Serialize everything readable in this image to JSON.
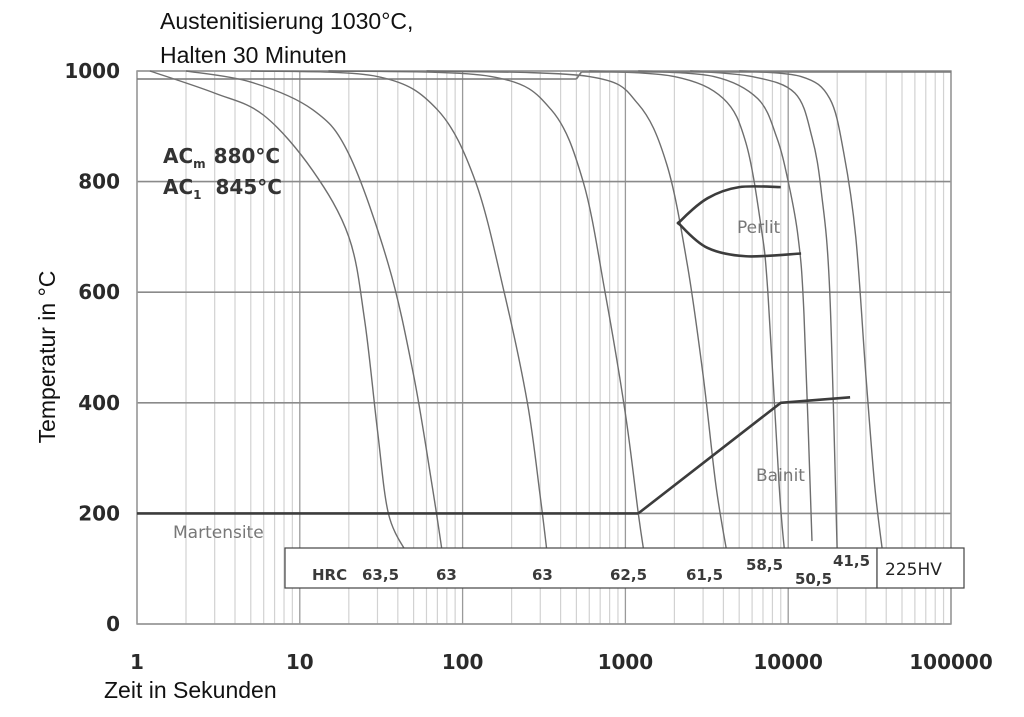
{
  "chart_data": {
    "type": "line",
    "title_lines": [
      "Austenitisierung 1030°C,",
      "Halten 30 Minuten"
    ],
    "xlabel": "Zeit in Sekunden",
    "ylabel": "Temperatur in °C",
    "x_scale": "log",
    "xlim": [
      1,
      100000
    ],
    "ylim": [
      0,
      1000
    ],
    "x_ticks": [
      "1",
      "10",
      "100",
      "1000",
      "10000",
      "100000"
    ],
    "y_ticks": [
      "0",
      "200",
      "400",
      "600",
      "800",
      "1000"
    ],
    "grid": true,
    "annotations": {
      "acm_main": "AC",
      "acm_sub": "m",
      "acm_value": "880°C",
      "ac1_main": "AC",
      "ac1_sub": "1",
      "ac1_value": "845°C"
    },
    "regions": {
      "perlit": "Perlit",
      "bainit": "Bainit",
      "martensite": "Martensite"
    },
    "hardness_prefix": "HRC",
    "hardness_labels": [
      "63,5",
      "63",
      "63",
      "62,5",
      "61,5",
      "58,5",
      "50,5",
      "41,5"
    ],
    "hv_label": "225HV",
    "austenitizing_line": [
      [
        1,
        1000
      ],
      [
        500,
        1000
      ]
    ],
    "cooling_curves": [
      {
        "points": [
          [
            1.2,
            1000
          ],
          [
            3,
            960
          ],
          [
            6,
            920
          ],
          [
            12,
            820
          ],
          [
            20,
            700
          ],
          [
            25,
            550
          ],
          [
            30,
            350
          ],
          [
            35,
            200
          ],
          [
            45,
            130
          ]
        ]
      },
      {
        "points": [
          [
            2,
            1000
          ],
          [
            5,
            980
          ],
          [
            12,
            930
          ],
          [
            20,
            850
          ],
          [
            35,
            650
          ],
          [
            50,
            450
          ],
          [
            65,
            250
          ],
          [
            75,
            130
          ]
        ]
      },
      {
        "points": [
          [
            5,
            1000
          ],
          [
            30,
            990
          ],
          [
            70,
            930
          ],
          [
            120,
            800
          ],
          [
            180,
            600
          ],
          [
            250,
            400
          ],
          [
            300,
            230
          ],
          [
            330,
            130
          ]
        ]
      },
      {
        "points": [
          [
            15,
            1000
          ],
          [
            150,
            990
          ],
          [
            350,
            930
          ],
          [
            550,
            800
          ],
          [
            750,
            600
          ],
          [
            1000,
            380
          ],
          [
            1200,
            200
          ],
          [
            1300,
            130
          ]
        ]
      },
      {
        "points": [
          [
            60,
            1000
          ],
          [
            600,
            990
          ],
          [
            1200,
            940
          ],
          [
            1800,
            830
          ],
          [
            2400,
            650
          ],
          [
            3000,
            450
          ],
          [
            3600,
            250
          ],
          [
            4200,
            130
          ]
        ]
      },
      {
        "points": [
          [
            600,
            1000
          ],
          [
            2000,
            990
          ],
          [
            4000,
            950
          ],
          [
            5500,
            870
          ],
          [
            6800,
            720
          ],
          [
            7500,
            600
          ],
          [
            8800,
            250
          ],
          [
            9500,
            130
          ]
        ]
      },
      {
        "points": [
          [
            1200,
            1000
          ],
          [
            3500,
            990
          ],
          [
            6500,
            950
          ],
          [
            8500,
            880
          ],
          [
            10000,
            800
          ],
          [
            11500,
            700
          ],
          [
            12500,
            560
          ],
          [
            14000,
            150
          ]
        ]
      },
      {
        "points": [
          [
            2500,
            1000
          ],
          [
            6000,
            990
          ],
          [
            11000,
            960
          ],
          [
            14000,
            880
          ],
          [
            16000,
            780
          ],
          [
            18000,
            600
          ],
          [
            20000,
            130
          ]
        ]
      },
      {
        "points": [
          [
            5000,
            1000
          ],
          [
            12000,
            990
          ],
          [
            18000,
            950
          ],
          [
            22000,
            850
          ],
          [
            26000,
            700
          ],
          [
            30000,
            450
          ],
          [
            34000,
            250
          ],
          [
            38000,
            130
          ]
        ]
      }
    ],
    "phase_boundaries": [
      {
        "name": "martensite_start",
        "points": [
          [
            1,
            200
          ],
          [
            1200,
            200
          ]
        ]
      },
      {
        "name": "bainite",
        "points": [
          [
            1200,
            200
          ],
          [
            9000,
            400
          ],
          [
            24000,
            410
          ]
        ]
      },
      {
        "name": "perlite_nose",
        "points": [
          [
            9000,
            790
          ],
          [
            5000,
            790
          ],
          [
            3200,
            770
          ],
          [
            2200,
            730
          ],
          [
            2200,
            720
          ],
          [
            3200,
            680
          ],
          [
            5500,
            665
          ],
          [
            12000,
            670
          ]
        ]
      }
    ]
  }
}
